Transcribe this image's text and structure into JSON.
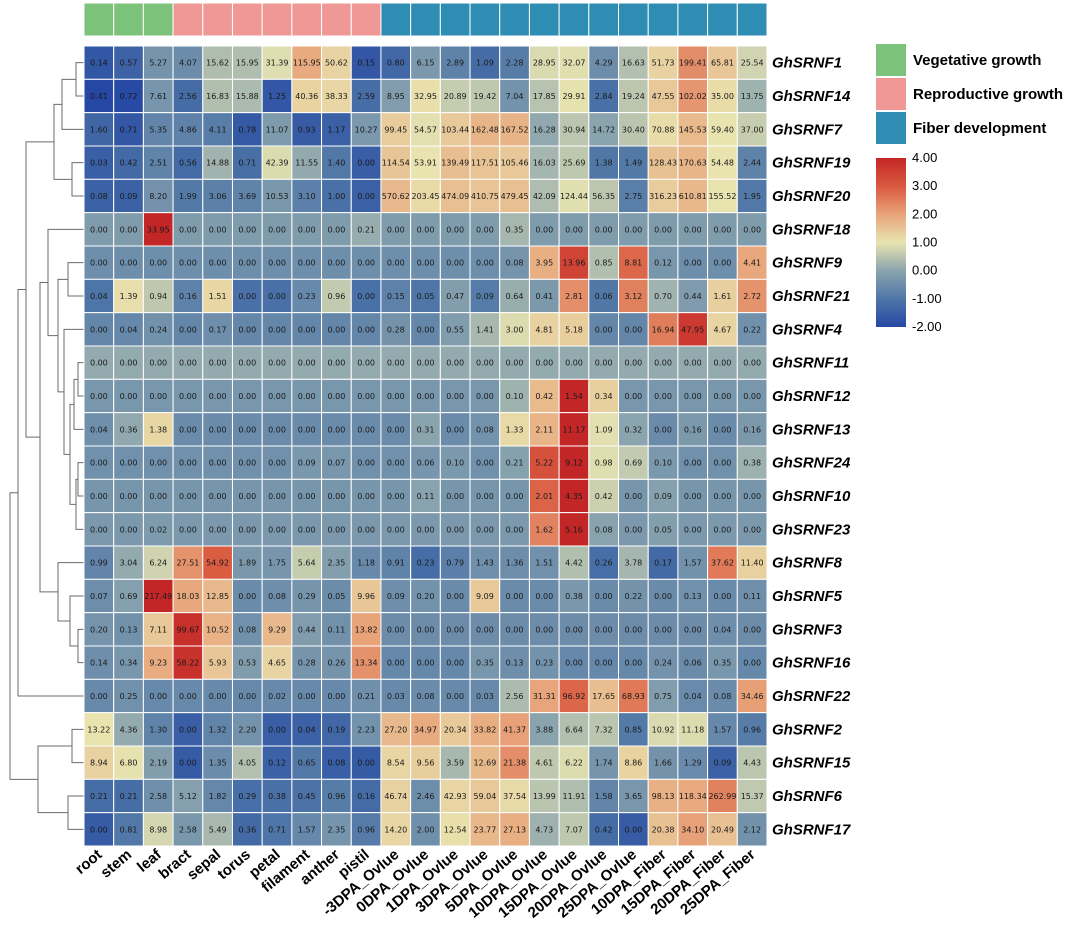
{
  "chart_data": {
    "type": "heatmap",
    "title": "",
    "columns": [
      "root",
      "stem",
      "leaf",
      "bract",
      "sepal",
      "torus",
      "petal",
      "filament",
      "anther",
      "pistil",
      "-3DPA_Ovlue",
      "0DPA_Ovlue",
      "1DPA_Ovlue",
      "3DPA_Ovlue",
      "5DPA_Ovlue",
      "10DPA_Ovlue",
      "15DPA_Ovlue",
      "20DPA_Ovlue",
      "25DPA_Ovlue",
      "10DPA_Fiber",
      "15DPA_Fiber",
      "20DPA_Fiber",
      "25DPA_Fiber"
    ],
    "column_groups": [
      0,
      0,
      0,
      1,
      1,
      1,
      1,
      1,
      1,
      1,
      2,
      2,
      2,
      2,
      2,
      2,
      2,
      2,
      2,
      2,
      2,
      2,
      2
    ],
    "groups": [
      {
        "name": "Vegetative growth",
        "color": "#7dc27b"
      },
      {
        "name": "Reproductive growth",
        "color": "#f09896"
      },
      {
        "name": "Fiber development",
        "color": "#2f8cb2"
      }
    ],
    "rows": [
      "GhSRNF1",
      "GhSRNF14",
      "GhSRNF7",
      "GhSRNF19",
      "GhSRNF20",
      "GhSRNF18",
      "GhSRNF9",
      "GhSRNF21",
      "GhSRNF4",
      "GhSRNF11",
      "GhSRNF12",
      "GhSRNF13",
      "GhSRNF24",
      "GhSRNF10",
      "GhSRNF23",
      "GhSRNF8",
      "GhSRNF5",
      "GhSRNF3",
      "GhSRNF16",
      "GhSRNF22",
      "GhSRNF2",
      "GhSRNF15",
      "GhSRNF6",
      "GhSRNF17"
    ],
    "values": [
      [
        "0.14",
        "0.57",
        "5.27",
        "4.07",
        "15.62",
        "15.95",
        "31.39",
        "115.95",
        "50.62",
        "0.15",
        "0.80",
        "6.15",
        "2.89",
        "1.09",
        "2.28",
        "28.95",
        "32.07",
        "4.29",
        "16.63",
        "51.73",
        "199.41",
        "65.81",
        "25.54"
      ],
      [
        "0.41",
        "0.72",
        "7.61",
        "2.56",
        "16.83",
        "15.88",
        "1.25",
        "40.36",
        "38.33",
        "2.59",
        "8.95",
        "32.95",
        "20.89",
        "19.42",
        "7.04",
        "17.85",
        "29.91",
        "2.84",
        "19.24",
        "47.55",
        "102.02",
        "35.00",
        "13.75"
      ],
      [
        "1.60",
        "0.71",
        "5.35",
        "4.86",
        "4.11",
        "0.78",
        "11.07",
        "0.93",
        "1.17",
        "10.27",
        "99.45",
        "54.57",
        "103.44",
        "162.48",
        "167.52",
        "16.28",
        "30.94",
        "14.72",
        "30.40",
        "70.88",
        "145.53",
        "59.40",
        "37.00"
      ],
      [
        "0.03",
        "0.42",
        "2.51",
        "0.56",
        "14.88",
        "0.71",
        "42.39",
        "11.55",
        "1.40",
        "0.00",
        "114.54",
        "53.91",
        "139.49",
        "117.51",
        "105.46",
        "16.03",
        "25.69",
        "1.38",
        "1.49",
        "128.43",
        "170.63",
        "54.48",
        "2.44"
      ],
      [
        "0.08",
        "0.09",
        "8.20",
        "1.99",
        "3.06",
        "3.69",
        "10.53",
        "3.10",
        "1.00",
        "0.00",
        "570.62",
        "203.45",
        "474.09",
        "410.75",
        "479.45",
        "42.09",
        "124.44",
        "56.35",
        "2.75",
        "316.23",
        "610.81",
        "155.52",
        "1.95"
      ],
      [
        "0.00",
        "0.00",
        "33.95",
        "0.00",
        "0.00",
        "0.00",
        "0.00",
        "0.00",
        "0.00",
        "0.21",
        "0.00",
        "0.00",
        "0.00",
        "0.00",
        "0.35",
        "0.00",
        "0.00",
        "0.00",
        "0.00",
        "0.00",
        "0.00",
        "0.00",
        "0.00"
      ],
      [
        "0.00",
        "0.00",
        "0.00",
        "0.00",
        "0.00",
        "0.00",
        "0.00",
        "0.00",
        "0.00",
        "0.00",
        "0.00",
        "0.00",
        "0.00",
        "0.00",
        "0.08",
        "3.95",
        "13.96",
        "0.85",
        "8.81",
        "0.12",
        "0.00",
        "0.00",
        "4.41"
      ],
      [
        "0.04",
        "1.39",
        "0.94",
        "0.16",
        "1.51",
        "0.00",
        "0.00",
        "0.23",
        "0.96",
        "0.00",
        "0.15",
        "0.05",
        "0.47",
        "0.09",
        "0.64",
        "0.41",
        "2.81",
        "0.06",
        "3.12",
        "0.70",
        "0.44",
        "1.61",
        "2.72"
      ],
      [
        "0.00",
        "0.04",
        "0.24",
        "0.00",
        "0.17",
        "0.00",
        "0.00",
        "0.00",
        "0.00",
        "0.00",
        "0.28",
        "0.00",
        "0.55",
        "1.41",
        "3.00",
        "4.81",
        "5.18",
        "0.00",
        "0.00",
        "16.94",
        "47.95",
        "4.67",
        "0.22"
      ],
      [
        "0.00",
        "0.00",
        "0.00",
        "0.00",
        "0.00",
        "0.00",
        "0.00",
        "0.00",
        "0.00",
        "0.00",
        "0.00",
        "0.00",
        "0.00",
        "0.00",
        "0.00",
        "0.00",
        "0.00",
        "0.00",
        "0.00",
        "0.00",
        "0.00",
        "0.00",
        "0.00"
      ],
      [
        "0.00",
        "0.00",
        "0.00",
        "0.00",
        "0.00",
        "0.00",
        "0.00",
        "0.00",
        "0.00",
        "0.00",
        "0.00",
        "0.00",
        "0.00",
        "0.00",
        "0.10",
        "0.42",
        "1.54",
        "0.34",
        "0.00",
        "0.00",
        "0.00",
        "0.00",
        "0.00"
      ],
      [
        "0.04",
        "0.36",
        "1.38",
        "0.00",
        "0.00",
        "0.00",
        "0.00",
        "0.00",
        "0.00",
        "0.00",
        "0.00",
        "0.31",
        "0.00",
        "0.08",
        "1.33",
        "2.11",
        "11.17",
        "1.09",
        "0.32",
        "0.00",
        "0.16",
        "0.00",
        "0.16"
      ],
      [
        "0.00",
        "0.00",
        "0.00",
        "0.00",
        "0.00",
        "0.00",
        "0.00",
        "0.09",
        "0.07",
        "0.00",
        "0.00",
        "0.06",
        "0.10",
        "0.00",
        "0.21",
        "5.22",
        "9.12",
        "0.98",
        "0.69",
        "0.10",
        "0.00",
        "0.00",
        "0.38"
      ],
      [
        "0.00",
        "0.00",
        "0.00",
        "0.00",
        "0.00",
        "0.00",
        "0.00",
        "0.00",
        "0.00",
        "0.00",
        "0.00",
        "0.11",
        "0.00",
        "0.00",
        "0.00",
        "2.01",
        "4.35",
        "0.42",
        "0.00",
        "0.09",
        "0.00",
        "0.00",
        "0.00"
      ],
      [
        "0.00",
        "0.00",
        "0.02",
        "0.00",
        "0.00",
        "0.00",
        "0.00",
        "0.00",
        "0.00",
        "0.00",
        "0.00",
        "0.00",
        "0.00",
        "0.00",
        "0.00",
        "1.62",
        "5.16",
        "0.08",
        "0.00",
        "0.05",
        "0.00",
        "0.00",
        "0.00"
      ],
      [
        "0.99",
        "3.04",
        "6.24",
        "27.51",
        "54.92",
        "1.89",
        "1.75",
        "5.64",
        "2.35",
        "1.18",
        "0.91",
        "0.23",
        "0.79",
        "1.43",
        "1.36",
        "1.51",
        "4.42",
        "0.26",
        "3.78",
        "0.17",
        "1.57",
        "37.62",
        "11.40"
      ],
      [
        "0.07",
        "0.69",
        "217.49",
        "18.03",
        "12.85",
        "0.00",
        "0.08",
        "0.29",
        "0.05",
        "9.96",
        "0.09",
        "0.20",
        "0.00",
        "9.09",
        "0.00",
        "0.00",
        "0.38",
        "0.00",
        "0.22",
        "0.00",
        "0.13",
        "0.00",
        "0.11"
      ],
      [
        "0.20",
        "0.13",
        "7.11",
        "99.67",
        "10.52",
        "0.08",
        "9.29",
        "0.44",
        "0.11",
        "13.82",
        "0.00",
        "0.00",
        "0.00",
        "0.00",
        "0.00",
        "0.00",
        "0.00",
        "0.00",
        "0.00",
        "0.00",
        "0.00",
        "0.04",
        "0.00"
      ],
      [
        "0.14",
        "0.34",
        "9.23",
        "58.22",
        "5.93",
        "0.53",
        "4.65",
        "0.28",
        "0.26",
        "13.34",
        "0.00",
        "0.00",
        "0.00",
        "0.35",
        "0.13",
        "0.23",
        "0.00",
        "0.00",
        "0.00",
        "0.24",
        "0.06",
        "0.35",
        "0.00"
      ],
      [
        "0.00",
        "0.25",
        "0.00",
        "0.00",
        "0.00",
        "0.00",
        "0.02",
        "0.00",
        "0.00",
        "0.21",
        "0.03",
        "0.08",
        "0.00",
        "0.03",
        "2.56",
        "31.31",
        "96.92",
        "17.65",
        "68.93",
        "0.75",
        "0.04",
        "0.08",
        "34.46"
      ],
      [
        "13.22",
        "4.36",
        "1.30",
        "0.00",
        "1.32",
        "2.20",
        "0.00",
        "0.04",
        "0.19",
        "2.23",
        "27.20",
        "34.97",
        "20.34",
        "33.82",
        "41.37",
        "3.88",
        "6.64",
        "7.32",
        "0.85",
        "10.92",
        "11.18",
        "1.57",
        "0.96"
      ],
      [
        "8.94",
        "6.80",
        "2.19",
        "0.00",
        "1.35",
        "4.05",
        "0.12",
        "0.65",
        "0.08",
        "0.00",
        "8.54",
        "9.56",
        "3.59",
        "12.69",
        "21.38",
        "4.61",
        "6.22",
        "1.74",
        "8.86",
        "1.66",
        "1.29",
        "0.09",
        "4.43"
      ],
      [
        "0.21",
        "0.21",
        "2.58",
        "5.12",
        "1.82",
        "0.29",
        "0.38",
        "0.45",
        "0.96",
        "0.16",
        "46.74",
        "2.46",
        "42.93",
        "59.04",
        "37.54",
        "13.99",
        "11.91",
        "1.58",
        "3.65",
        "98.13",
        "118.34",
        "262.99",
        "15.37"
      ],
      [
        "0.00",
        "0.81",
        "8.98",
        "2.58",
        "5.49",
        "0.36",
        "0.71",
        "1.57",
        "2.35",
        "0.96",
        "14.20",
        "2.00",
        "12.54",
        "23.77",
        "27.13",
        "4.73",
        "7.07",
        "0.42",
        "0.00",
        "20.38",
        "34.10",
        "20.49",
        "2.12"
      ]
    ],
    "color_scale": {
      "min": -2.0,
      "max": 4.0,
      "ticks": [
        "4.00",
        "3.00",
        "2.00",
        "1.00",
        "0.00",
        "-1.00",
        "-2.00"
      ],
      "stops": [
        {
          "v": -2.0,
          "color": "#2548a4"
        },
        {
          "v": -1.0,
          "color": "#4f76a7"
        },
        {
          "v": 0.0,
          "color": "#8aa4ae"
        },
        {
          "v": 1.0,
          "color": "#e8e4b0"
        },
        {
          "v": 2.0,
          "color": "#e8a47a"
        },
        {
          "v": 3.0,
          "color": "#d9593f"
        },
        {
          "v": 4.0,
          "color": "#c32626"
        }
      ]
    },
    "dendrogram": "row clustering tree (left side)"
  }
}
